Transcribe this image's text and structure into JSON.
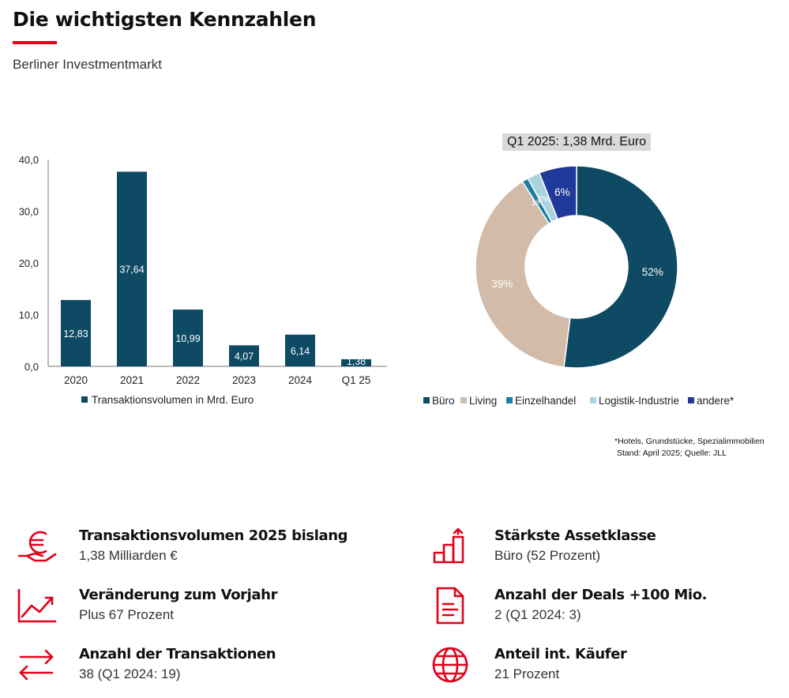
{
  "header": {
    "title": "Die wichtigsten Kennzahlen",
    "subtitle": "Berliner Investmentmarkt"
  },
  "colors": {
    "accent": "#e2001a",
    "bar": "#0e4a63",
    "buero": "#0e4a63",
    "living": "#d2bba8",
    "einzelhandel": "#1a7fa1",
    "logistik": "#a9d3de",
    "andere": "#1f3a9a"
  },
  "chart_data": [
    {
      "type": "bar",
      "categories": [
        "2020",
        "2021",
        "2022",
        "2023",
        "2024",
        "Q1 25"
      ],
      "values": [
        12.83,
        37.64,
        10.99,
        4.07,
        6.14,
        1.38
      ],
      "data_labels": [
        "12,83",
        "37,64",
        "10,99",
        "4,07",
        "6,14",
        "1,38"
      ],
      "series": [
        {
          "name": "Transaktionsvolumen in Mrd. Euro",
          "values": [
            12.83,
            37.64,
            10.99,
            4.07,
            6.14,
            1.38
          ]
        }
      ],
      "ylim": [
        0,
        40
      ],
      "yticks": [
        0,
        10,
        20,
        30,
        40
      ],
      "ytick_labels": [
        "0,0",
        "10,0",
        "20,0",
        "30,0",
        "40,0"
      ],
      "legend": "bottom",
      "grid": false
    },
    {
      "type": "pie",
      "title": "Q1 2025: 1,38 Mrd. Euro",
      "labels": [
        "Büro",
        "Living",
        "Einzelhandel",
        "Logistik-Industrie",
        "andere*"
      ],
      "values": [
        52,
        39,
        1,
        2,
        6
      ],
      "data_labels": [
        "52%",
        "39%",
        "1%",
        "2%",
        "6%"
      ],
      "legend": "bottom"
    }
  ],
  "footnote": {
    "line1": "*Hotels, Grundstücke, Spezialimmobilien",
    "line2": "Stand: April 2025; Quelle: JLL"
  },
  "kpis": [
    {
      "icon": "euro-hand-icon",
      "label": "Transaktionsvolumen 2025 bislang",
      "value": "1,38 Milliarden €"
    },
    {
      "icon": "line-chart-icon",
      "label": "Veränderung zum Vorjahr",
      "value": "Plus 67 Prozent"
    },
    {
      "icon": "swap-arrows-icon",
      "label": "Anzahl der Transaktionen",
      "value": "38 (Q1 2024: 19)"
    },
    {
      "icon": "stairs-arrow-icon",
      "label": "Stärkste Assetklasse",
      "value": "Büro (52 Prozent)"
    },
    {
      "icon": "document-icon",
      "label": "Anzahl der Deals +100 Mio.",
      "value": "2 (Q1 2024: 3)"
    },
    {
      "icon": "globe-icon",
      "label": "Anteil int. Käufer",
      "value": "21 Prozent"
    }
  ]
}
